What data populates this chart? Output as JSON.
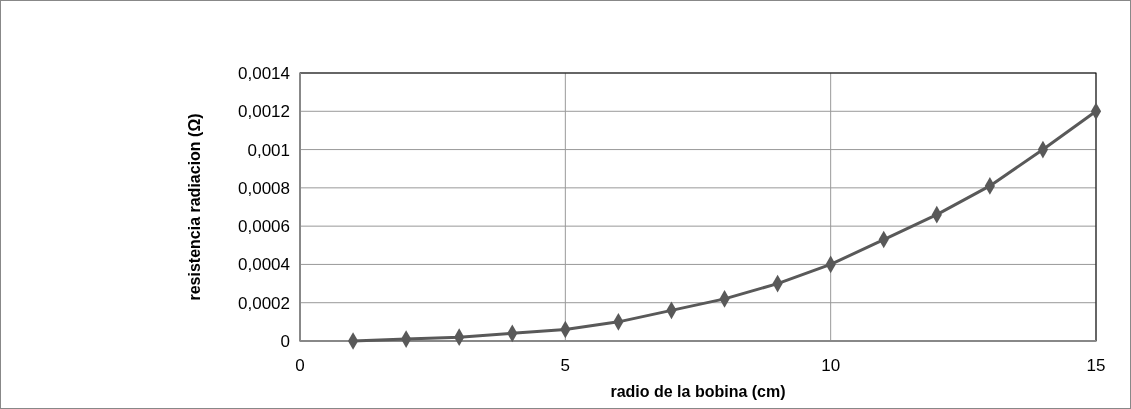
{
  "chart_data": {
    "type": "line",
    "xlabel": "radio de la bobina (cm)",
    "ylabel": "resistencia radiacion (Ω)",
    "x": [
      1,
      2,
      3,
      4,
      5,
      6,
      7,
      8,
      9,
      10,
      11,
      12,
      13,
      14,
      15
    ],
    "series": [
      {
        "color": "#595959",
        "values": [
          0,
          1e-05,
          2e-05,
          4e-05,
          6e-05,
          0.0001,
          0.00016,
          0.00022,
          0.0003,
          0.0004,
          0.00053,
          0.00066,
          0.00081,
          0.001,
          0.0012
        ]
      }
    ],
    "xlim": [
      0,
      15
    ],
    "xticks": [
      0,
      5,
      10,
      15
    ],
    "ylim": [
      0,
      0.0014
    ],
    "yticks": [
      0,
      {
        "value": 0.0002,
        "label": "0,0002"
      },
      {
        "value": 0.0004,
        "label": "0,0004"
      },
      {
        "value": 0.0006,
        "label": "0,0006"
      },
      {
        "value": 0.0008,
        "label": "0,0008"
      },
      {
        "value": 0.001,
        "label": "0,001"
      },
      {
        "value": 0.0012,
        "label": "0,0012"
      },
      {
        "value": 0.0014,
        "label": "0,0014"
      }
    ],
    "grid": true,
    "marker": "diamond"
  }
}
